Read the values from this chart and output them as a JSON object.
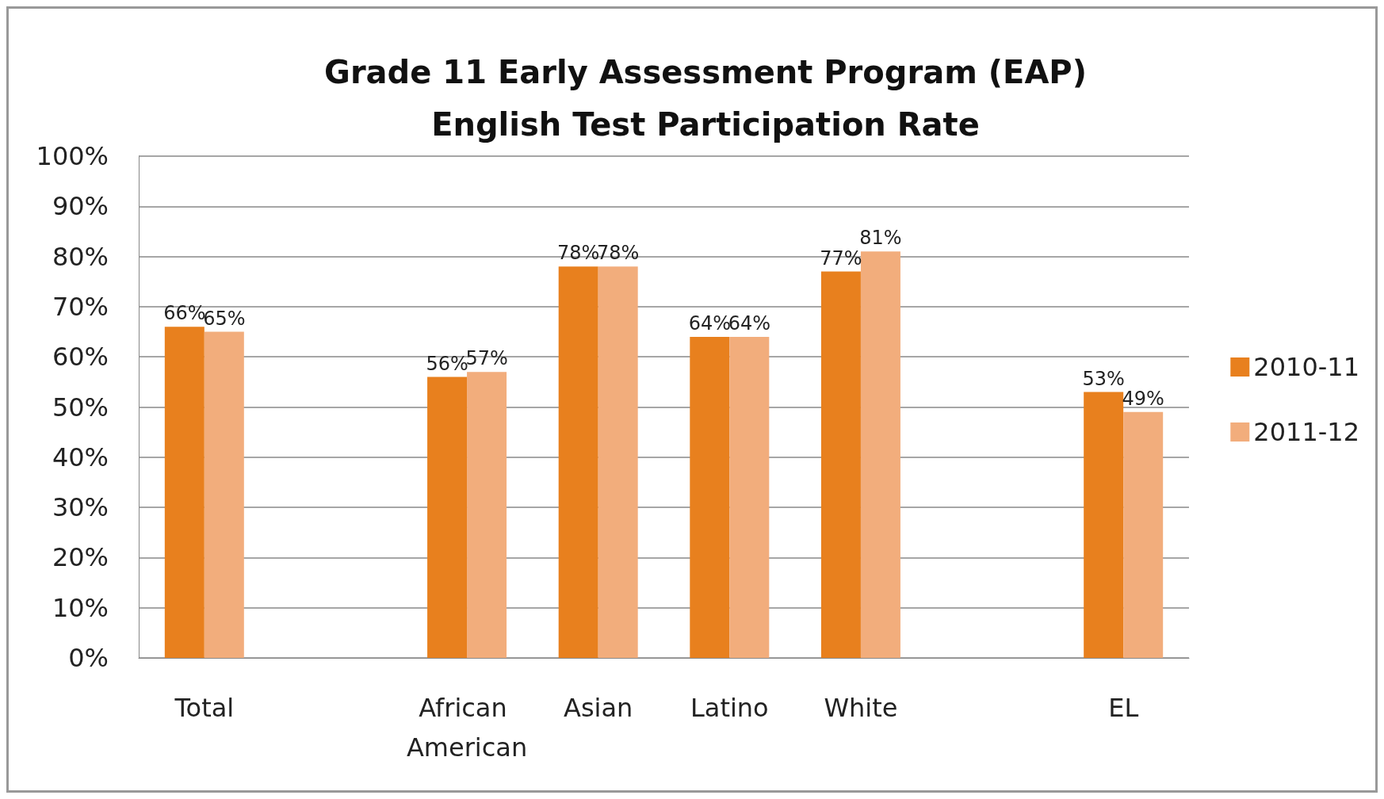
{
  "chart_data": {
    "type": "bar",
    "title": "Grade 11 Early Assessment Program (EAP)\nEnglish Test Participation Rate",
    "categories": [
      "Total",
      null,
      "African American",
      "Asian",
      "Latino",
      "White",
      null,
      "EL"
    ],
    "series": [
      {
        "name": "2010-11",
        "color": "#e8801e",
        "values": [
          66,
          null,
          56,
          78,
          64,
          77,
          null,
          53
        ],
        "value_labels": [
          "66%",
          null,
          "56%",
          "78%",
          "64%",
          "77%",
          null,
          "53%"
        ]
      },
      {
        "name": "2011-12",
        "color": "#f2ad7c",
        "values": [
          65,
          null,
          57,
          78,
          64,
          81,
          null,
          49
        ],
        "value_labels": [
          "65%",
          null,
          "57%",
          "78%",
          "64%",
          "81%",
          null,
          "49%"
        ]
      }
    ],
    "ylim": [
      0,
      100
    ],
    "yticks": [
      {
        "value": 0,
        "label": "0%"
      },
      {
        "value": 10,
        "label": "10%"
      },
      {
        "value": 20,
        "label": "20%"
      },
      {
        "value": 30,
        "label": "30%"
      },
      {
        "value": 40,
        "label": "40%"
      },
      {
        "value": 50,
        "label": "50%"
      },
      {
        "value": 60,
        "label": "60%"
      },
      {
        "value": 70,
        "label": "70%"
      },
      {
        "value": 80,
        "label": "80%"
      },
      {
        "value": 90,
        "label": "90%"
      },
      {
        "value": 100,
        "label": "100%"
      }
    ],
    "grid": "y",
    "legend": "right"
  }
}
